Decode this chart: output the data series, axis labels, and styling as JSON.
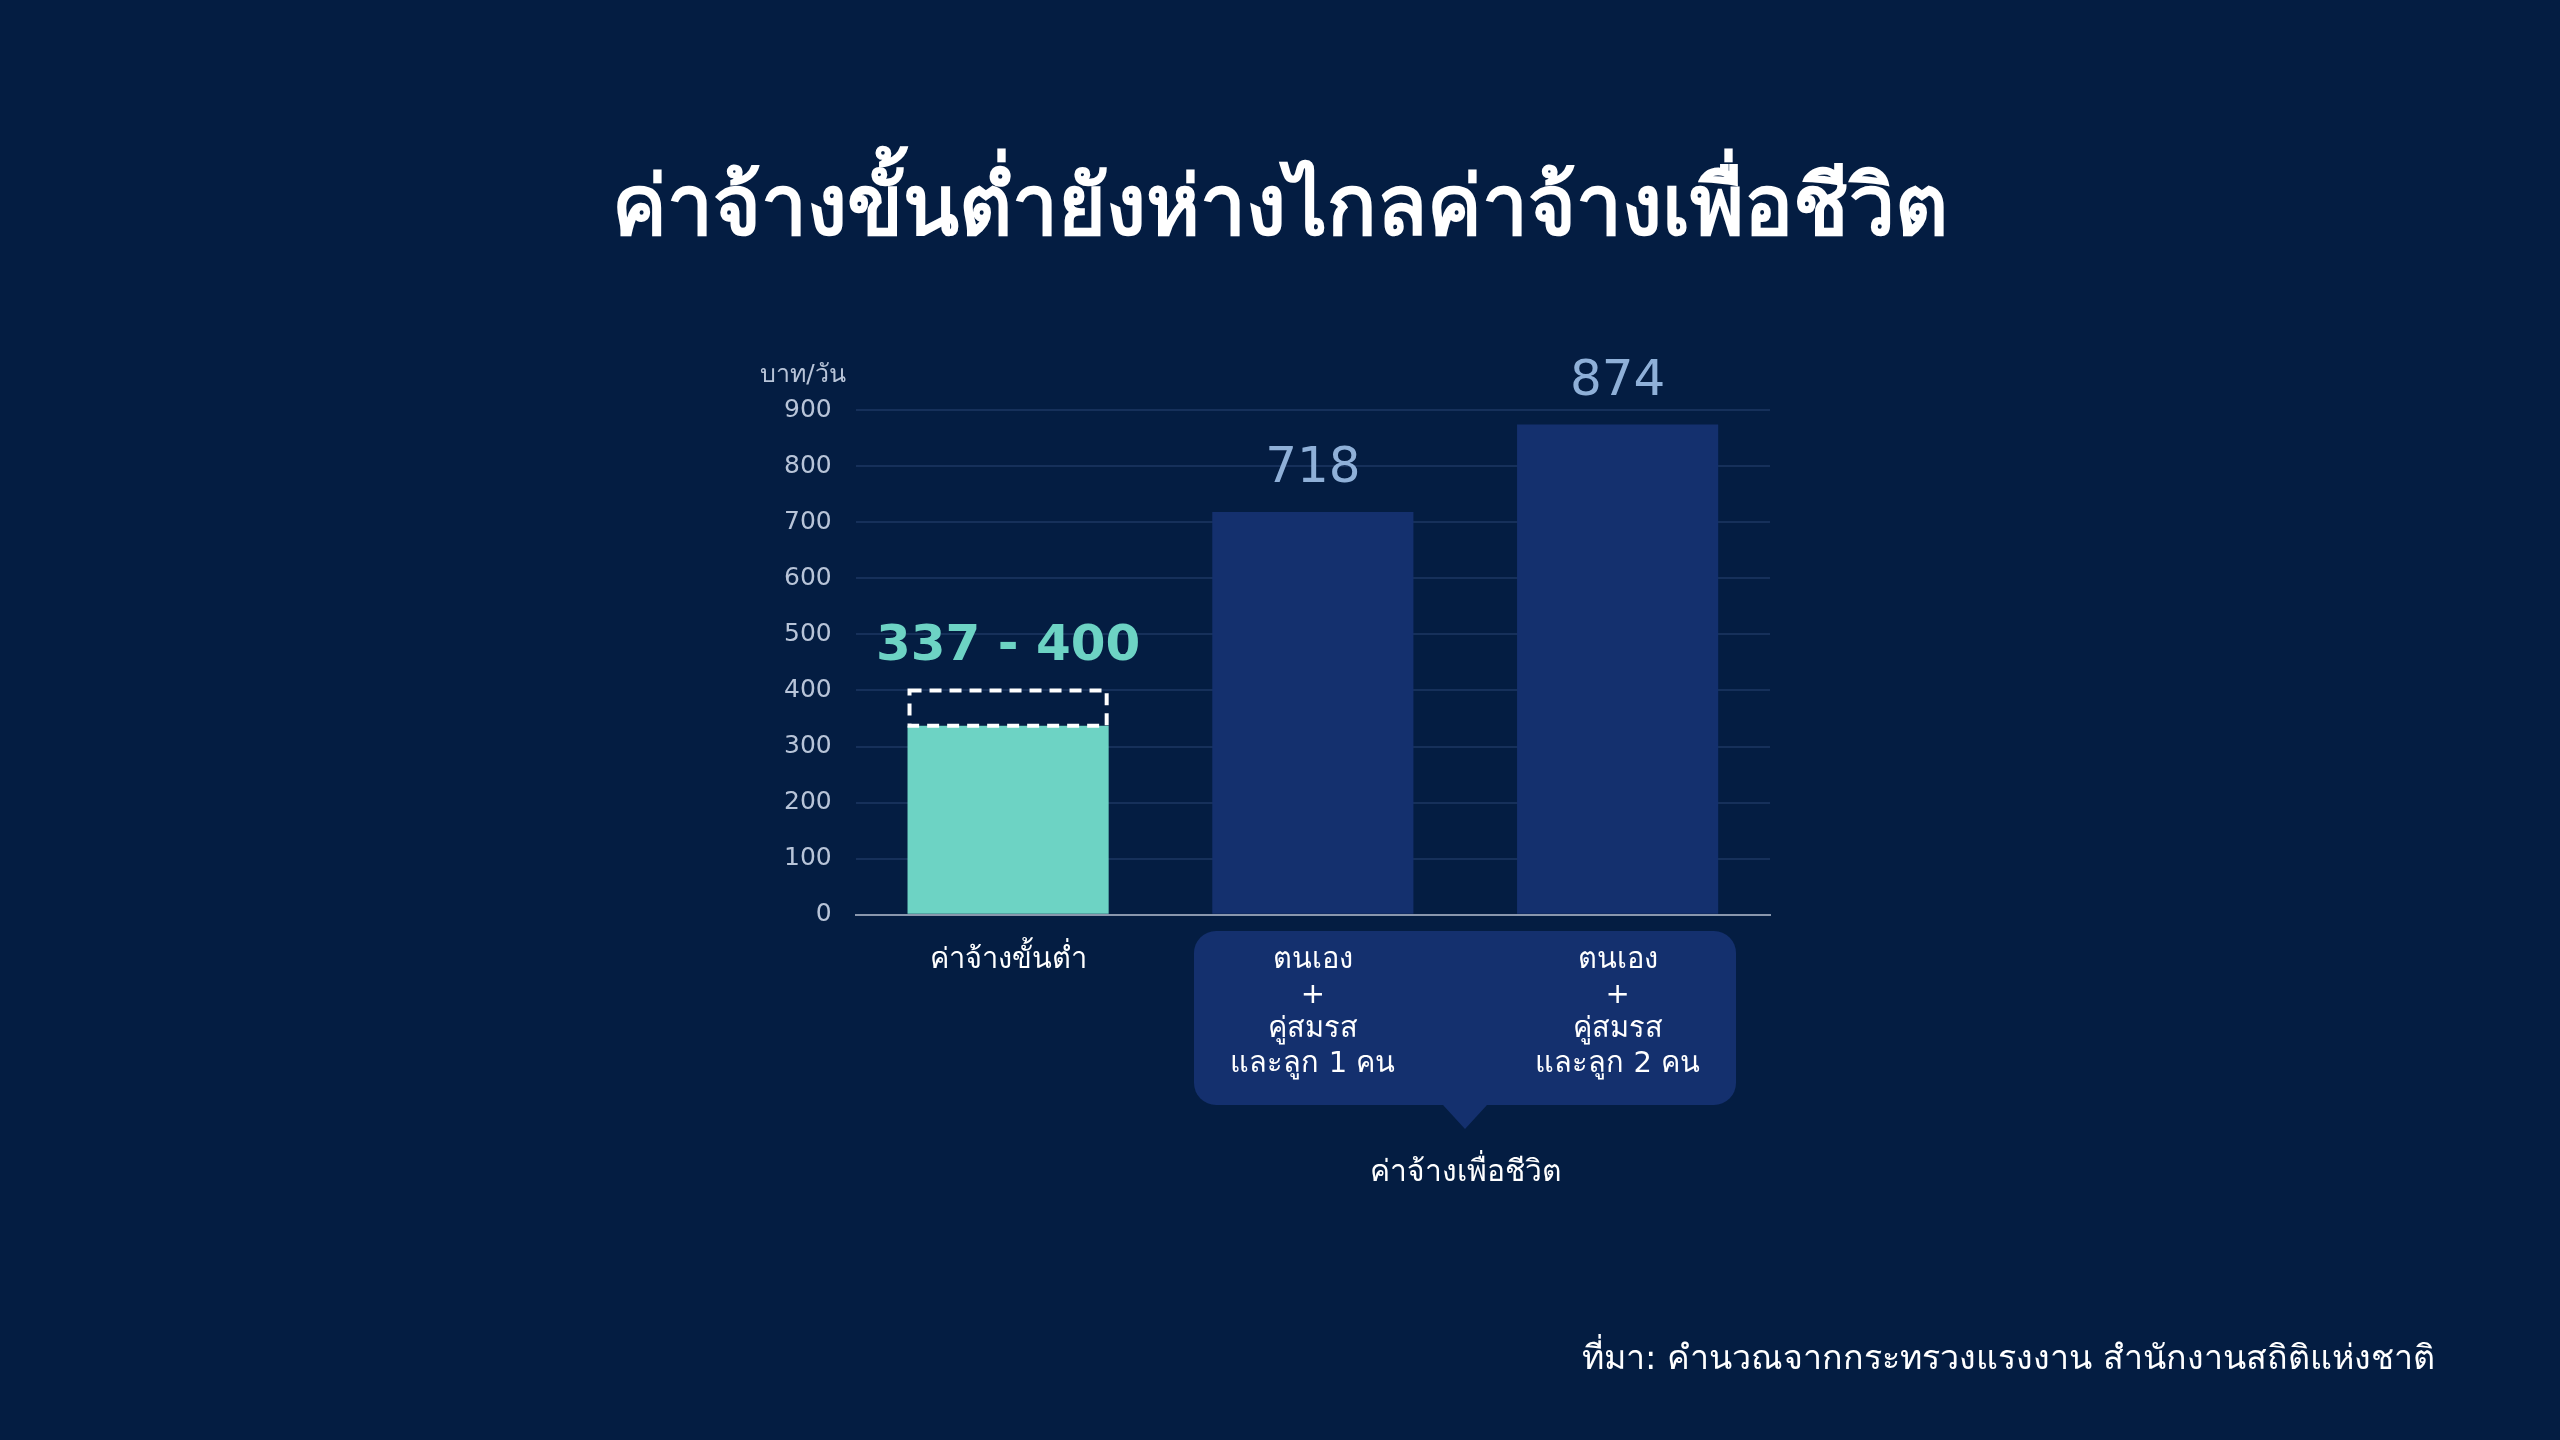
{
  "chart_data": {
    "type": "bar",
    "title": "ค่าจ้างขั้นต่ำยังห่างไกลค่าจ้างเพื่อชีวิต",
    "ylabel": "บาท/วัน",
    "categories": [
      "ค่าจ้างขั้นต่ำ",
      "ตนเอง\n+\nคู่สมรส\nและลูก 1 คน",
      "ตนเอง\n+\nคู่สมรส\nและลูก 2 คน"
    ],
    "stacked": true,
    "series": [
      {
        "colors": [
          "#6dd3c4",
          "#14306e",
          "#14306e"
        ],
        "values": [
          337,
          718,
          874
        ],
        "value_labels": [
          "337 - 400",
          "718",
          "874"
        ]
      },
      {
        "color": "#ffffff",
        "line_style": "dashed",
        "values": [
          63,
          null,
          null
        ]
      }
    ],
    "ylim": [
      0,
      900
    ],
    "yticks": [
      0,
      100,
      200,
      300,
      400,
      500,
      600,
      700,
      800,
      900
    ],
    "grid": "y",
    "annotations": [
      "ค่าจ้างเพื่อชีวิต",
      "ที่มา: คำนวณจากกระทรวงแรงงาน สำนักงานสถิติแห่งชาติ"
    ]
  }
}
